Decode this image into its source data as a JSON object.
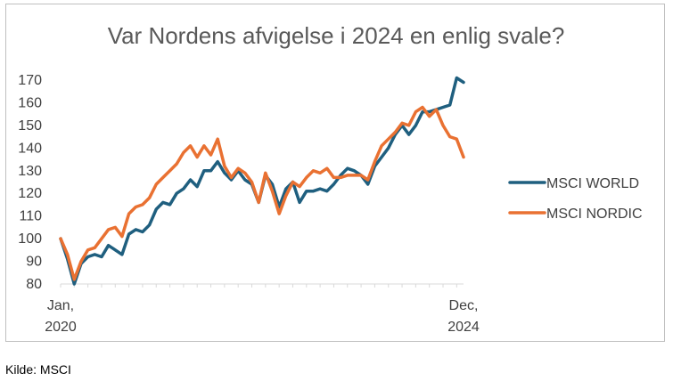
{
  "chart_data": {
    "type": "line",
    "title": "Var Nordens afvigelse i 2024 en enlig svale?",
    "xlabel": "",
    "ylabel": "",
    "ylim": [
      80,
      170
    ],
    "yticks": [
      80,
      90,
      100,
      110,
      120,
      130,
      140,
      150,
      160,
      170
    ],
    "x_start_label": [
      "Jan,",
      "2020"
    ],
    "x_end_label": [
      "Dec,",
      "2024"
    ],
    "legend_position": "right",
    "grid": false,
    "series": [
      {
        "name": "MSCI WORLD",
        "color": "#1f5f7f",
        "values": [
          100,
          91,
          80,
          89,
          92,
          93,
          92,
          97,
          95,
          93,
          102,
          104,
          103,
          106,
          113,
          116,
          115,
          120,
          122,
          126,
          123,
          130,
          130,
          134,
          129,
          126,
          130,
          126,
          124,
          116,
          128,
          124,
          114,
          122,
          125,
          116,
          121,
          121,
          122,
          121,
          124,
          128,
          131,
          130,
          128,
          124,
          132,
          136,
          140,
          146,
          150,
          146,
          150,
          156,
          156,
          157,
          158,
          159,
          171,
          169
        ]
      },
      {
        "name": "MSCI NORDIC",
        "color": "#e97132",
        "values": [
          100,
          93,
          82,
          90,
          95,
          96,
          100,
          104,
          105,
          101,
          111,
          114,
          115,
          118,
          124,
          127,
          130,
          133,
          138,
          141,
          136,
          141,
          137,
          144,
          132,
          127,
          131,
          129,
          125,
          116,
          129,
          121,
          111,
          119,
          125,
          123,
          127,
          130,
          129,
          131,
          127,
          127,
          128,
          128,
          128,
          126,
          134,
          141,
          144,
          147,
          151,
          150,
          156,
          158,
          154,
          157,
          150,
          145,
          144,
          136
        ]
      }
    ]
  },
  "source_note": "Kilde: MSCI"
}
